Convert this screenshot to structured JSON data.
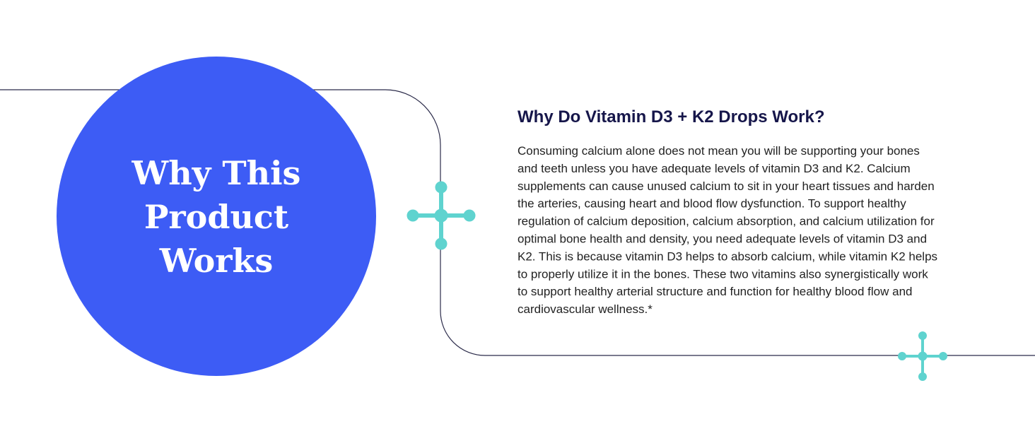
{
  "badge": {
    "lines": [
      "Why This",
      "Product",
      "Works"
    ]
  },
  "heading": "Why Do Vitamin D3 + K2 Drops Work?",
  "body": {
    "lines": [
      "Consuming calcium alone does not mean you will be supporting your bones",
      "and teeth unless you have adequate levels of vitamin D3 and K2. Calcium",
      "supplements can cause unused calcium to sit in your heart tissues and harden",
      "the arteries, causing heart and blood flow dysfunction. To support healthy",
      "regulation of calcium deposition, calcium absorption, and calcium utilization for",
      "optimal bone health and density, you need adequate levels of vitamin D3 and",
      "K2. This is because vitamin D3 helps to absorb calcium, while vitamin K2 helps",
      "to properly utilize it in the bones. These two vitamins also synergistically work",
      "to support healthy arterial structure and function for healthy blood flow and",
      "cardiovascular wellness.*"
    ]
  }
}
